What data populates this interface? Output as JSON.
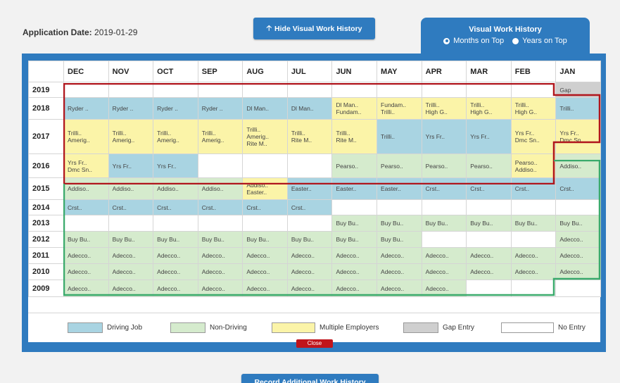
{
  "header": {
    "application_date_label": "Application Date:",
    "application_date_value": "2019-01-29",
    "hide_button_label": "Hide Visual Work History",
    "bottom_button_label": "Record Additional Work History"
  },
  "view_tab": {
    "title": "Visual Work History",
    "option_months": "Months on Top",
    "option_years": "Years on Top",
    "selected": "Months on Top"
  },
  "months": [
    "DEC",
    "NOV",
    "OCT",
    "SEP",
    "AUG",
    "JUL",
    "JUN",
    "MAY",
    "APR",
    "MAR",
    "FEB",
    "JAN"
  ],
  "rows": [
    {
      "year": "2019",
      "cells": [
        [
          "",
          ""
        ],
        [
          "",
          ""
        ],
        [
          "",
          ""
        ],
        [
          "",
          ""
        ],
        [
          "",
          ""
        ],
        [
          "",
          ""
        ],
        [
          "",
          ""
        ],
        [
          "",
          ""
        ],
        [
          "",
          ""
        ],
        [
          "",
          ""
        ],
        [
          "",
          ""
        ],
        [
          "gap",
          "Gap"
        ]
      ]
    },
    {
      "year": "2018",
      "cells": [
        [
          "drv",
          "Ryder .."
        ],
        [
          "drv",
          "Ryder .."
        ],
        [
          "drv",
          "Ryder .."
        ],
        [
          "drv",
          "Ryder .."
        ],
        [
          "drv",
          "Dl Man.."
        ],
        [
          "drv",
          "Dl Man.."
        ],
        [
          "me",
          "Dl Man..\nFundam.."
        ],
        [
          "me",
          "Fundam..\nTrilli.."
        ],
        [
          "me",
          "Trilli..\nHigh G.."
        ],
        [
          "me",
          "Trilli..\nHigh G.."
        ],
        [
          "me",
          "Trilli..\nHigh G.."
        ],
        [
          "drv",
          "Trilli.."
        ]
      ]
    },
    {
      "year": "2017",
      "cells": [
        [
          "me",
          "Trilli..\nAmerig.."
        ],
        [
          "me",
          "Trilli..\nAmerig.."
        ],
        [
          "me",
          "Trilli..\nAmerig.."
        ],
        [
          "me",
          "Trilli..\nAmerig.."
        ],
        [
          "me",
          "Trilli..\nAmerig..\nRite M.."
        ],
        [
          "me",
          "Trilli..\nRite M.."
        ],
        [
          "me",
          "Trilli..\nRite M.."
        ],
        [
          "drv",
          "Trilli.."
        ],
        [
          "drv",
          "Yrs Fr.."
        ],
        [
          "drv",
          "Yrs Fr.."
        ],
        [
          "me",
          "Yrs Fr..\nDmc Sn.."
        ],
        [
          "me",
          "Yrs Fr..\nDmc Sn.."
        ]
      ]
    },
    {
      "year": "2016",
      "cells": [
        [
          "me",
          "Yrs Fr..\nDmc Sn.."
        ],
        [
          "drv",
          "Yrs Fr.."
        ],
        [
          "drv",
          "Yrs Fr.."
        ],
        [
          "",
          ""
        ],
        [
          "",
          ""
        ],
        [
          "",
          ""
        ],
        [
          "nd",
          "Pearso.."
        ],
        [
          "nd",
          "Pearso.."
        ],
        [
          "nd",
          "Pearso.."
        ],
        [
          "nd",
          "Pearso.."
        ],
        [
          "me",
          "Pearso..\nAddiso.."
        ],
        [
          "nd",
          "Addiso.."
        ]
      ]
    },
    {
      "year": "2015",
      "cells": [
        [
          "nd",
          "Addiso.."
        ],
        [
          "nd",
          "Addiso.."
        ],
        [
          "nd",
          "Addiso.."
        ],
        [
          "nd",
          "Addiso.."
        ],
        [
          "me",
          "Addiso..\nEaster.."
        ],
        [
          "drv",
          "Easter.."
        ],
        [
          "drv",
          "Easter.."
        ],
        [
          "drv",
          "Easter.."
        ],
        [
          "drv",
          "Crst.."
        ],
        [
          "drv",
          "Crst.."
        ],
        [
          "drv",
          "Crst.."
        ],
        [
          "drv",
          "Crst.."
        ]
      ]
    },
    {
      "year": "2014",
      "cells": [
        [
          "drv",
          "Crst.."
        ],
        [
          "drv",
          "Crst.."
        ],
        [
          "drv",
          "Crst.."
        ],
        [
          "drv",
          "Crst.."
        ],
        [
          "drv",
          "Crst.."
        ],
        [
          "drv",
          "Crst.."
        ],
        [
          "",
          ""
        ],
        [
          "",
          ""
        ],
        [
          "",
          ""
        ],
        [
          "",
          ""
        ],
        [
          "",
          ""
        ],
        [
          "",
          ""
        ]
      ]
    },
    {
      "year": "2013",
      "cells": [
        [
          "",
          ""
        ],
        [
          "",
          ""
        ],
        [
          "",
          ""
        ],
        [
          "",
          ""
        ],
        [
          "",
          ""
        ],
        [
          "",
          ""
        ],
        [
          "nd",
          "Buy Bu.."
        ],
        [
          "nd",
          "Buy Bu.."
        ],
        [
          "nd",
          "Buy Bu.."
        ],
        [
          "nd",
          "Buy Bu.."
        ],
        [
          "nd",
          "Buy Bu.."
        ],
        [
          "nd",
          "Buy Bu.."
        ]
      ]
    },
    {
      "year": "2012",
      "cells": [
        [
          "nd",
          "Buy Bu.."
        ],
        [
          "nd",
          "Buy Bu.."
        ],
        [
          "nd",
          "Buy Bu.."
        ],
        [
          "nd",
          "Buy Bu.."
        ],
        [
          "nd",
          "Buy Bu.."
        ],
        [
          "nd",
          "Buy Bu.."
        ],
        [
          "nd",
          "Buy Bu.."
        ],
        [
          "nd",
          "Buy Bu.."
        ],
        [
          "",
          ""
        ],
        [
          "",
          ""
        ],
        [
          "",
          ""
        ],
        [
          "nd",
          "Adecco.."
        ]
      ]
    },
    {
      "year": "2011",
      "cells": [
        [
          "nd",
          "Adecco.."
        ],
        [
          "nd",
          "Adecco.."
        ],
        [
          "nd",
          "Adecco.."
        ],
        [
          "nd",
          "Adecco.."
        ],
        [
          "nd",
          "Adecco.."
        ],
        [
          "nd",
          "Adecco.."
        ],
        [
          "nd",
          "Adecco.."
        ],
        [
          "nd",
          "Adecco.."
        ],
        [
          "nd",
          "Adecco.."
        ],
        [
          "nd",
          "Adecco.."
        ],
        [
          "nd",
          "Adecco.."
        ],
        [
          "nd",
          "Adecco.."
        ]
      ]
    },
    {
      "year": "2010",
      "cells": [
        [
          "nd",
          "Adecco.."
        ],
        [
          "nd",
          "Adecco.."
        ],
        [
          "nd",
          "Adecco.."
        ],
        [
          "nd",
          "Adecco.."
        ],
        [
          "nd",
          "Adecco.."
        ],
        [
          "nd",
          "Adecco.."
        ],
        [
          "nd",
          "Adecco.."
        ],
        [
          "nd",
          "Adecco.."
        ],
        [
          "nd",
          "Adecco.."
        ],
        [
          "nd",
          "Adecco.."
        ],
        [
          "nd",
          "Adecco.."
        ],
        [
          "nd",
          "Adecco.."
        ]
      ]
    },
    {
      "year": "2009",
      "cells": [
        [
          "nd",
          "Adecco.."
        ],
        [
          "nd",
          "Adecco.."
        ],
        [
          "nd",
          "Adecco.."
        ],
        [
          "nd",
          "Adecco.."
        ],
        [
          "nd",
          "Adecco.."
        ],
        [
          "nd",
          "Adecco.."
        ],
        [
          "nd",
          "Adecco.."
        ],
        [
          "nd",
          "Adecco.."
        ],
        [
          "nd",
          "Adecco.."
        ],
        [
          "",
          ""
        ],
        [
          "",
          ""
        ],
        [
          "",
          ""
        ]
      ]
    }
  ],
  "legend": {
    "driving": "Driving Job",
    "non_driving": "Non-Driving",
    "multiple": "Multiple Employers",
    "gap": "Gap Entry",
    "no_entry": "No Entry"
  },
  "colors": {
    "panel": "#2f7bbf",
    "driving": "#a9d4e2",
    "non_driving": "#d5ebcd",
    "multiple": "#fbf4a8",
    "gap": "#cfcfcf",
    "no_entry": "#ffffff",
    "outline_red": "#b0151c",
    "outline_green": "#3aaa6c",
    "close": "#c0141b"
  },
  "close_label": "Close"
}
